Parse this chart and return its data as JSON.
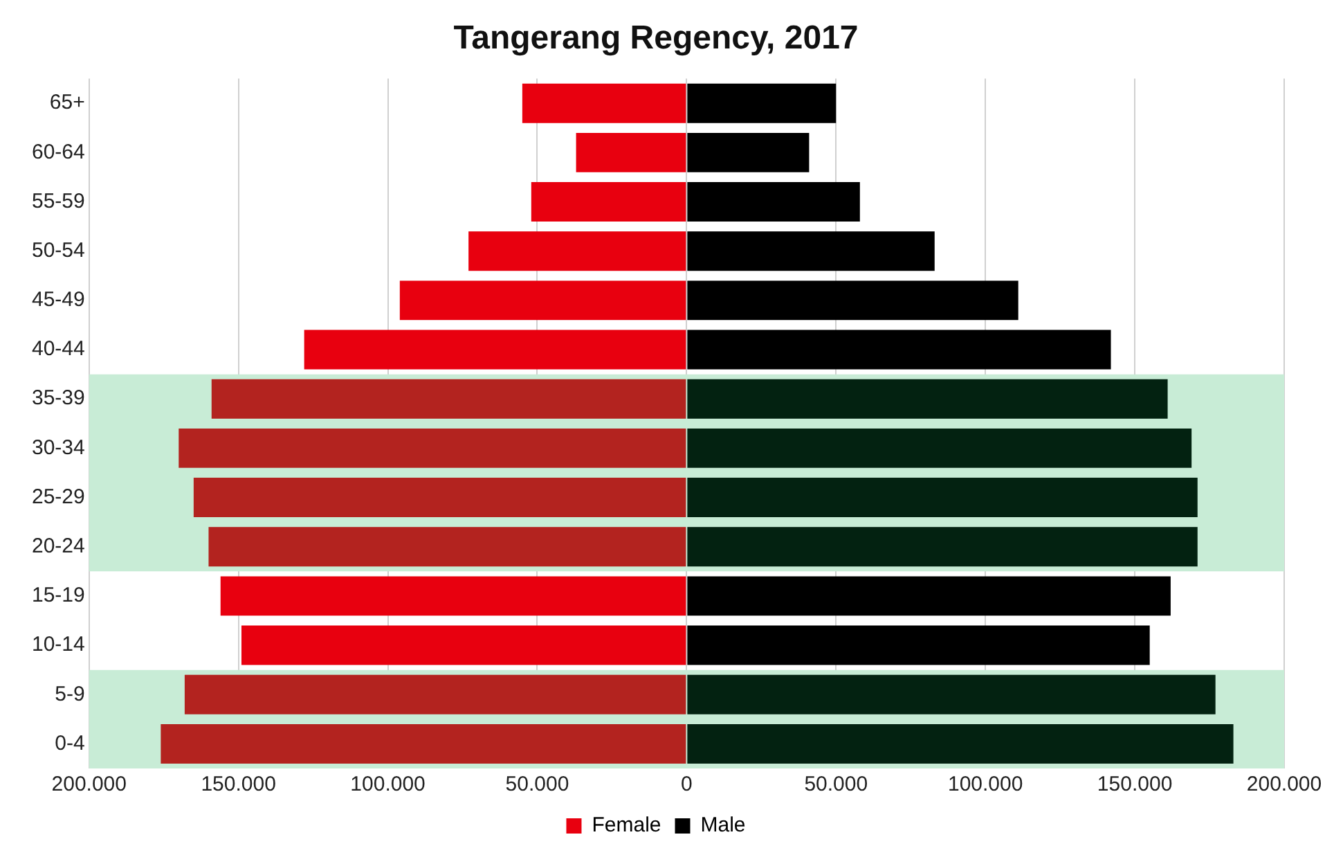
{
  "chart_data": {
    "type": "bar",
    "title": "Tangerang Regency, 2017",
    "orientation": "horizontal",
    "stacked": true,
    "categories": [
      "65+",
      "60-64",
      "55-59",
      "50-54",
      "45-49",
      "40-44",
      "35-39",
      "30-34",
      "25-29",
      "20-24",
      "15-19",
      "10-14",
      "5-9",
      "0-4"
    ],
    "series": [
      {
        "name": "Female",
        "color": "#e8000f",
        "values": [
          -55000,
          -37000,
          -52000,
          -73000,
          -96000,
          -128000,
          -159000,
          -170000,
          -165000,
          -160000,
          -156000,
          -149000,
          -168000,
          -176000
        ],
        "colors": [
          "#e8000f",
          "#e8000f",
          "#e8000f",
          "#e8000f",
          "#e8000f",
          "#e8000f",
          "#b3231f",
          "#b3231f",
          "#b3231f",
          "#b3231f",
          "#e8000f",
          "#e8000f",
          "#b3231f",
          "#b3231f"
        ]
      },
      {
        "name": "Male",
        "color": "#000000",
        "values": [
          50000,
          41000,
          58000,
          83000,
          111000,
          142000,
          161000,
          169000,
          171000,
          171000,
          162000,
          155000,
          177000,
          183000
        ],
        "colors": [
          "#000000",
          "#000000",
          "#000000",
          "#000000",
          "#000000",
          "#000000",
          "#032211",
          "#032211",
          "#032211",
          "#032211",
          "#000000",
          "#000000",
          "#032211",
          "#032211"
        ]
      }
    ],
    "xlim": [
      -200000,
      200000
    ],
    "xticks": [
      {
        "value": -200000,
        "label": "200.000"
      },
      {
        "value": -150000,
        "label": "150.000"
      },
      {
        "value": -100000,
        "label": "100.000"
      },
      {
        "value": -50000,
        "label": "50.000"
      },
      0,
      {
        "value": 50000,
        "label": "50.000"
      },
      {
        "value": 100000,
        "label": "100.000"
      },
      {
        "value": 150000,
        "label": "150.000"
      },
      {
        "value": 200000,
        "label": "200.000"
      }
    ],
    "bands": [
      {
        "axis": "y",
        "from": "35-39",
        "to": "20-24",
        "color": "#c8ecd6"
      },
      {
        "axis": "y",
        "from": "5-9",
        "to": "0-4",
        "color": "#c8ecd6"
      }
    ],
    "grid": "x",
    "legend": "bottom"
  }
}
